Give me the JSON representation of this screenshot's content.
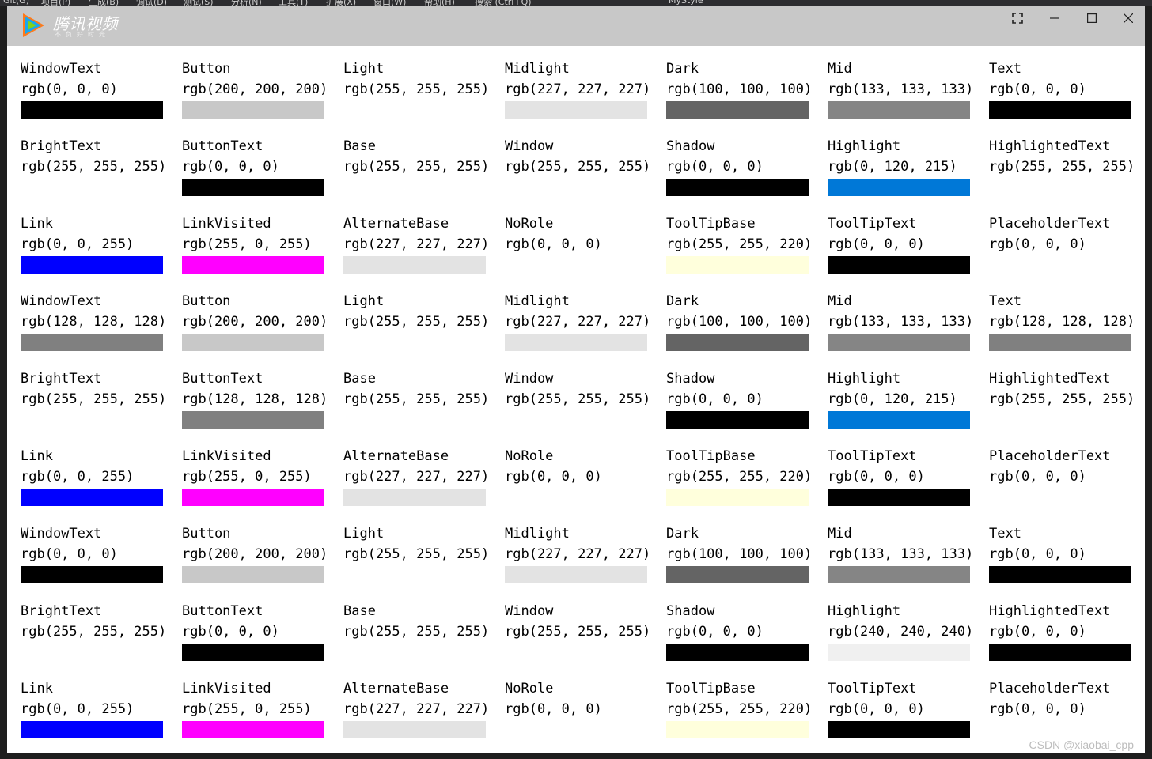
{
  "background": {
    "menubar_items": [
      "Git(G)",
      "项目(P)",
      "生成(B)",
      "调试(D)",
      "测试(S)",
      "分析(N)",
      "工具(T)",
      "扩展(X)",
      "窗口(W)",
      "帮助(H)",
      "搜索 (Ctrl+Q)",
      "MyStyle"
    ]
  },
  "window": {
    "brand": "腾讯视频",
    "brand_sub": "不负好时光",
    "palette": [
      {
        "name": "WindowText",
        "value": "rgb(0, 0, 0)",
        "color": "#000000",
        "swatch": true
      },
      {
        "name": "Button",
        "value": "rgb(200, 200, 200)",
        "color": "#c8c8c8",
        "swatch": true
      },
      {
        "name": "Light",
        "value": "rgb(255, 255, 255)",
        "color": "#ffffff",
        "swatch": true
      },
      {
        "name": "Midlight",
        "value": "rgb(227, 227, 227)",
        "color": "#e3e3e3",
        "swatch": true
      },
      {
        "name": "Dark",
        "value": "rgb(100, 100, 100)",
        "color": "#646464",
        "swatch": true
      },
      {
        "name": "Mid",
        "value": "rgb(133, 133, 133)",
        "color": "#858585",
        "swatch": true
      },
      {
        "name": "Text",
        "value": "rgb(0, 0, 0)",
        "color": "#000000",
        "swatch": true
      },
      {
        "name": "BrightText",
        "value": "rgb(255, 255, 255)",
        "color": "#ffffff",
        "swatch": true
      },
      {
        "name": "ButtonText",
        "value": "rgb(0, 0, 0)",
        "color": "#000000",
        "swatch": true
      },
      {
        "name": "Base",
        "value": "rgb(255, 255, 255)",
        "color": "#ffffff",
        "swatch": true
      },
      {
        "name": "Window",
        "value": "rgb(255, 255, 255)",
        "color": "#ffffff",
        "swatch": true
      },
      {
        "name": "Shadow",
        "value": "rgb(0, 0, 0)",
        "color": "#000000",
        "swatch": true
      },
      {
        "name": "Highlight",
        "value": "rgb(0, 120, 215)",
        "color": "#0078d7",
        "swatch": true
      },
      {
        "name": "HighlightedText",
        "value": "rgb(255, 255, 255)",
        "color": "#ffffff",
        "swatch": true
      },
      {
        "name": "Link",
        "value": "rgb(0, 0, 255)",
        "color": "#0000ff",
        "swatch": true
      },
      {
        "name": "LinkVisited",
        "value": "rgb(255, 0, 255)",
        "color": "#ff00ff",
        "swatch": true
      },
      {
        "name": "AlternateBase",
        "value": "rgb(227, 227, 227)",
        "color": "#e3e3e3",
        "swatch": true
      },
      {
        "name": "NoRole",
        "value": "rgb(0, 0, 0)",
        "color": "#000000",
        "swatch": false
      },
      {
        "name": "ToolTipBase",
        "value": "rgb(255, 255, 220)",
        "color": "#ffffdc",
        "swatch": true
      },
      {
        "name": "ToolTipText",
        "value": "rgb(0, 0, 0)",
        "color": "#000000",
        "swatch": true
      },
      {
        "name": "PlaceholderText",
        "value": "rgb(0, 0, 0)",
        "color": "#000000",
        "swatch": false
      },
      {
        "name": "WindowText",
        "value": "rgb(128, 128, 128)",
        "color": "#808080",
        "swatch": true
      },
      {
        "name": "Button",
        "value": "rgb(200, 200, 200)",
        "color": "#c8c8c8",
        "swatch": true
      },
      {
        "name": "Light",
        "value": "rgb(255, 255, 255)",
        "color": "#ffffff",
        "swatch": true
      },
      {
        "name": "Midlight",
        "value": "rgb(227, 227, 227)",
        "color": "#e3e3e3",
        "swatch": true
      },
      {
        "name": "Dark",
        "value": "rgb(100, 100, 100)",
        "color": "#646464",
        "swatch": true
      },
      {
        "name": "Mid",
        "value": "rgb(133, 133, 133)",
        "color": "#858585",
        "swatch": true
      },
      {
        "name": "Text",
        "value": "rgb(128, 128, 128)",
        "color": "#808080",
        "swatch": true
      },
      {
        "name": "BrightText",
        "value": "rgb(255, 255, 255)",
        "color": "#ffffff",
        "swatch": true
      },
      {
        "name": "ButtonText",
        "value": "rgb(128, 128, 128)",
        "color": "#808080",
        "swatch": true
      },
      {
        "name": "Base",
        "value": "rgb(255, 255, 255)",
        "color": "#ffffff",
        "swatch": true
      },
      {
        "name": "Window",
        "value": "rgb(255, 255, 255)",
        "color": "#ffffff",
        "swatch": true
      },
      {
        "name": "Shadow",
        "value": "rgb(0, 0, 0)",
        "color": "#000000",
        "swatch": true
      },
      {
        "name": "Highlight",
        "value": "rgb(0, 120, 215)",
        "color": "#0078d7",
        "swatch": true
      },
      {
        "name": "HighlightedText",
        "value": "rgb(255, 255, 255)",
        "color": "#ffffff",
        "swatch": true
      },
      {
        "name": "Link",
        "value": "rgb(0, 0, 255)",
        "color": "#0000ff",
        "swatch": true
      },
      {
        "name": "LinkVisited",
        "value": "rgb(255, 0, 255)",
        "color": "#ff00ff",
        "swatch": true
      },
      {
        "name": "AlternateBase",
        "value": "rgb(227, 227, 227)",
        "color": "#e3e3e3",
        "swatch": true
      },
      {
        "name": "NoRole",
        "value": "rgb(0, 0, 0)",
        "color": "#000000",
        "swatch": false
      },
      {
        "name": "ToolTipBase",
        "value": "rgb(255, 255, 220)",
        "color": "#ffffdc",
        "swatch": true
      },
      {
        "name": "ToolTipText",
        "value": "rgb(0, 0, 0)",
        "color": "#000000",
        "swatch": true
      },
      {
        "name": "PlaceholderText",
        "value": "rgb(0, 0, 0)",
        "color": "#000000",
        "swatch": false
      },
      {
        "name": "WindowText",
        "value": "rgb(0, 0, 0)",
        "color": "#000000",
        "swatch": true
      },
      {
        "name": "Button",
        "value": "rgb(200, 200, 200)",
        "color": "#c8c8c8",
        "swatch": true
      },
      {
        "name": "Light",
        "value": "rgb(255, 255, 255)",
        "color": "#ffffff",
        "swatch": true
      },
      {
        "name": "Midlight",
        "value": "rgb(227, 227, 227)",
        "color": "#e3e3e3",
        "swatch": true
      },
      {
        "name": "Dark",
        "value": "rgb(100, 100, 100)",
        "color": "#646464",
        "swatch": true
      },
      {
        "name": "Mid",
        "value": "rgb(133, 133, 133)",
        "color": "#858585",
        "swatch": true
      },
      {
        "name": "Text",
        "value": "rgb(0, 0, 0)",
        "color": "#000000",
        "swatch": true
      },
      {
        "name": "BrightText",
        "value": "rgb(255, 255, 255)",
        "color": "#ffffff",
        "swatch": true
      },
      {
        "name": "ButtonText",
        "value": "rgb(0, 0, 0)",
        "color": "#000000",
        "swatch": true
      },
      {
        "name": "Base",
        "value": "rgb(255, 255, 255)",
        "color": "#ffffff",
        "swatch": true
      },
      {
        "name": "Window",
        "value": "rgb(255, 255, 255)",
        "color": "#ffffff",
        "swatch": true
      },
      {
        "name": "Shadow",
        "value": "rgb(0, 0, 0)",
        "color": "#000000",
        "swatch": true
      },
      {
        "name": "Highlight",
        "value": "rgb(240, 240, 240)",
        "color": "#f0f0f0",
        "swatch": true
      },
      {
        "name": "HighlightedText",
        "value": "rgb(0, 0, 0)",
        "color": "#000000",
        "swatch": true
      },
      {
        "name": "Link",
        "value": "rgb(0, 0, 255)",
        "color": "#0000ff",
        "swatch": true
      },
      {
        "name": "LinkVisited",
        "value": "rgb(255, 0, 255)",
        "color": "#ff00ff",
        "swatch": true
      },
      {
        "name": "AlternateBase",
        "value": "rgb(227, 227, 227)",
        "color": "#e3e3e3",
        "swatch": true
      },
      {
        "name": "NoRole",
        "value": "rgb(0, 0, 0)",
        "color": "#000000",
        "swatch": false
      },
      {
        "name": "ToolTipBase",
        "value": "rgb(255, 255, 220)",
        "color": "#ffffdc",
        "swatch": true
      },
      {
        "name": "ToolTipText",
        "value": "rgb(0, 0, 0)",
        "color": "#000000",
        "swatch": true
      },
      {
        "name": "PlaceholderText",
        "value": "rgb(0, 0, 0)",
        "color": "#000000",
        "swatch": false
      }
    ]
  },
  "watermark": "CSDN @xiaobai_cpp"
}
